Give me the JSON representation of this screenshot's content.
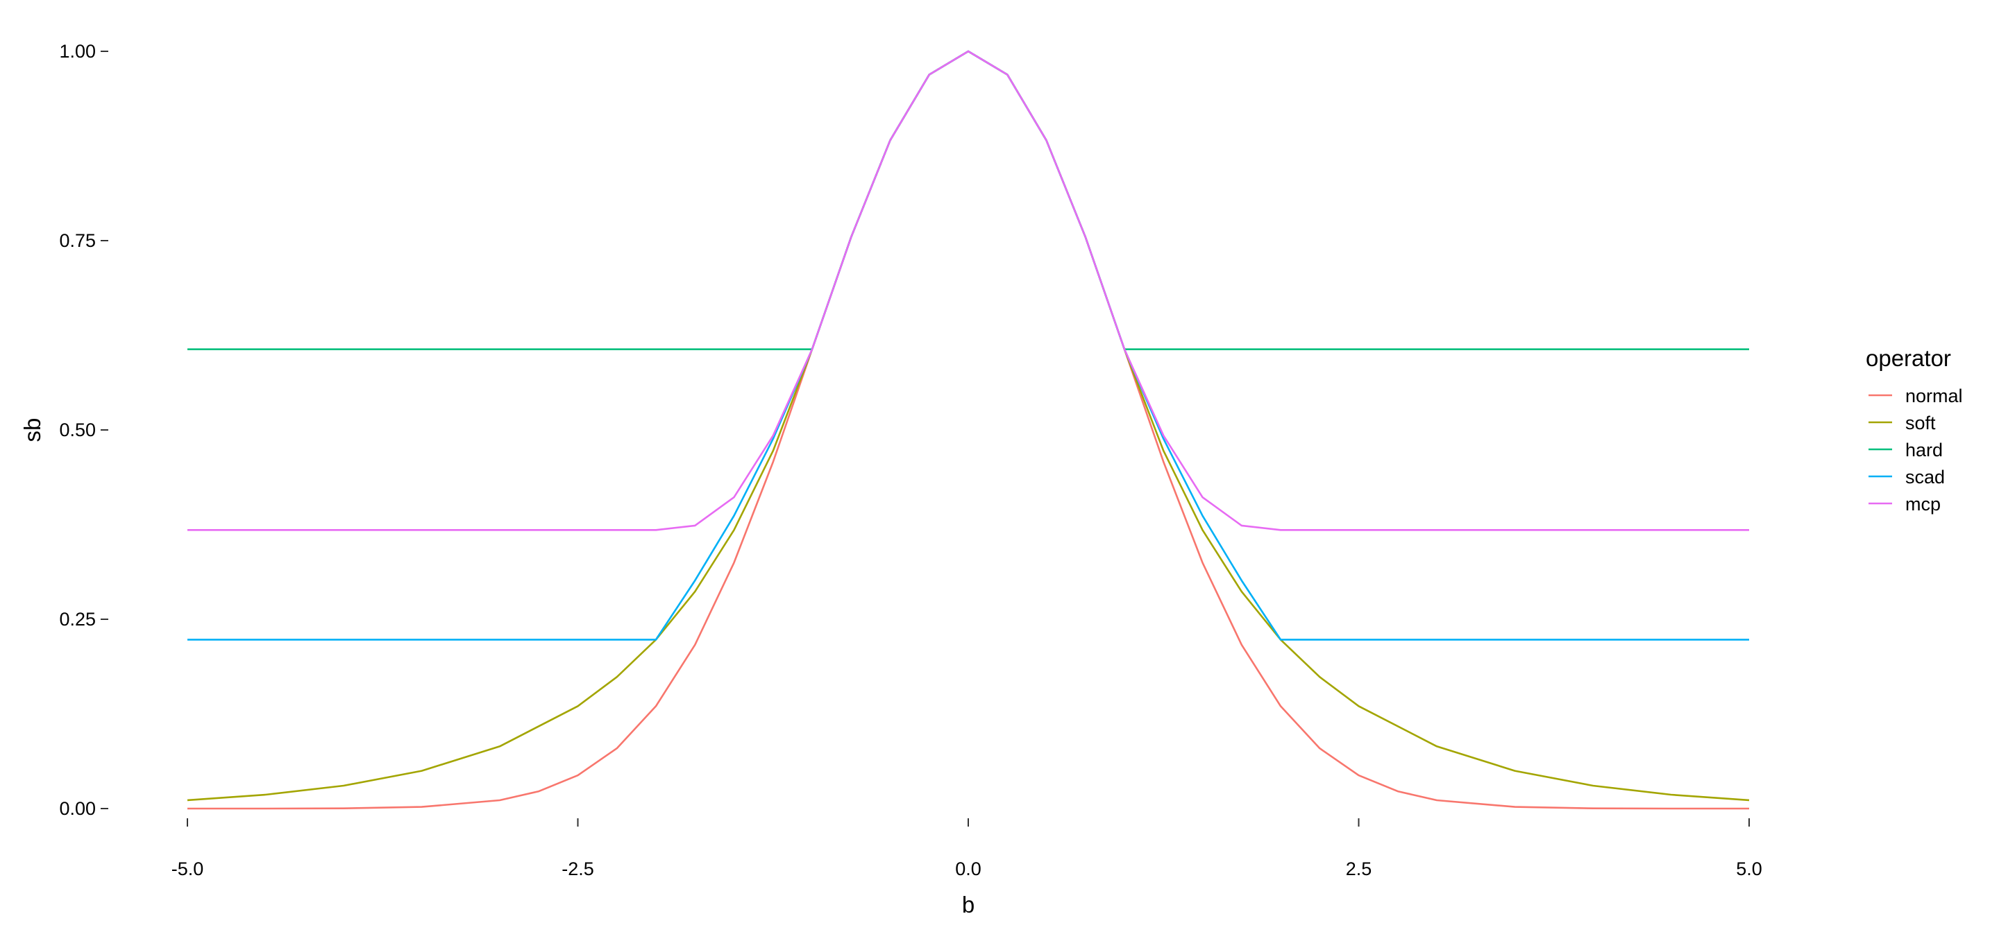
{
  "chart_data": {
    "type": "line",
    "title": "",
    "xlabel": "b",
    "ylabel": "sb",
    "xlim": [
      -5,
      5
    ],
    "ylim": [
      0,
      1
    ],
    "x_ticks": [
      -5.0,
      -2.5,
      0.0,
      2.5,
      5.0
    ],
    "x_tick_labels": [
      "-5.0",
      "-2.5",
      "0.0",
      "2.5",
      "5.0"
    ],
    "y_ticks": [
      0.0,
      0.25,
      0.5,
      0.75,
      1.0
    ],
    "y_tick_labels": [
      "0.00",
      "0.25",
      "0.50",
      "0.75",
      "1.00"
    ],
    "grid": false,
    "legend": {
      "title": "operator",
      "placement": "right",
      "entries": [
        "normal",
        "soft",
        "hard",
        "scad",
        "mcp"
      ]
    },
    "series": [
      {
        "name": "normal",
        "color": "#F8766D",
        "x": [
          -5.0,
          -4.5,
          -4.0,
          -3.5,
          -3.0,
          -2.75,
          -2.5,
          -2.25,
          -2.0,
          -1.75,
          -1.5,
          -1.25,
          -1.0,
          -0.75,
          -0.5,
          -0.25,
          0.0,
          0.25,
          0.5,
          0.75,
          1.0,
          1.25,
          1.5,
          1.75,
          2.0,
          2.25,
          2.5,
          2.75,
          3.0,
          3.5,
          4.0,
          4.5,
          5.0
        ],
        "y": [
          0.0,
          0.0,
          0.0003,
          0.0022,
          0.011,
          0.0228,
          0.0439,
          0.0796,
          0.1353,
          0.2163,
          0.3247,
          0.4578,
          0.6065,
          0.7548,
          0.8825,
          0.9692,
          1.0,
          0.9692,
          0.8825,
          0.7548,
          0.6065,
          0.4578,
          0.3247,
          0.2163,
          0.1353,
          0.0796,
          0.0439,
          0.0228,
          0.011,
          0.0022,
          0.0003,
          0.0,
          0.0
        ]
      },
      {
        "name": "soft",
        "color": "#A3A500",
        "x": [
          -5.0,
          -4.5,
          -4.0,
          -3.5,
          -3.0,
          -2.5,
          -2.25,
          -2.0,
          -1.75,
          -1.5,
          -1.25,
          -1.0,
          -0.75,
          -0.5,
          -0.25,
          0.0,
          0.25,
          0.5,
          0.75,
          1.0,
          1.25,
          1.5,
          1.75,
          2.0,
          2.25,
          2.5,
          3.0,
          3.5,
          4.0,
          4.5,
          5.0
        ],
        "y": [
          0.0111,
          0.0183,
          0.0302,
          0.0498,
          0.0821,
          0.1353,
          0.1738,
          0.2231,
          0.2865,
          0.3679,
          0.4724,
          0.6065,
          0.7548,
          0.8825,
          0.9692,
          1.0,
          0.9692,
          0.8825,
          0.7548,
          0.6065,
          0.4724,
          0.3679,
          0.2865,
          0.2231,
          0.1738,
          0.1353,
          0.0821,
          0.0498,
          0.0302,
          0.0183,
          0.0111
        ]
      },
      {
        "name": "hard",
        "color": "#00BF7D",
        "x": [
          -5.0,
          -1.0,
          -1.0,
          -0.75,
          -0.5,
          -0.25,
          0.0,
          0.25,
          0.5,
          0.75,
          1.0,
          1.0,
          5.0
        ],
        "y": [
          0.6065,
          0.6065,
          0.6065,
          0.7548,
          0.8825,
          0.9692,
          1.0,
          0.9692,
          0.8825,
          0.7548,
          0.6065,
          0.6065,
          0.6065
        ]
      },
      {
        "name": "scad",
        "color": "#00B0F6",
        "x": [
          -5.0,
          -2.0,
          -1.75,
          -1.5,
          -1.25,
          -1.0,
          -0.75,
          -0.5,
          -0.25,
          0.0,
          0.25,
          0.5,
          0.75,
          1.0,
          1.25,
          1.5,
          1.75,
          2.0,
          5.0
        ],
        "y": [
          0.2231,
          0.2231,
          0.3012,
          0.3867,
          0.4883,
          0.6065,
          0.7548,
          0.8825,
          0.9692,
          1.0,
          0.9692,
          0.8825,
          0.7548,
          0.6065,
          0.4883,
          0.3867,
          0.3012,
          0.2231,
          0.2231
        ]
      },
      {
        "name": "mcp",
        "color": "#E76BF3",
        "x": [
          -5.0,
          -2.0,
          -1.75,
          -1.5,
          -1.25,
          -1.0,
          -0.75,
          -0.5,
          -0.25,
          0.0,
          0.25,
          0.5,
          0.75,
          1.0,
          1.25,
          1.5,
          1.75,
          2.0,
          5.0
        ],
        "y": [
          0.3679,
          0.3679,
          0.3737,
          0.4111,
          0.4925,
          0.6065,
          0.7548,
          0.8825,
          0.9692,
          1.0,
          0.9692,
          0.8825,
          0.7548,
          0.6065,
          0.4925,
          0.4111,
          0.3737,
          0.3679,
          0.3679
        ]
      }
    ]
  }
}
